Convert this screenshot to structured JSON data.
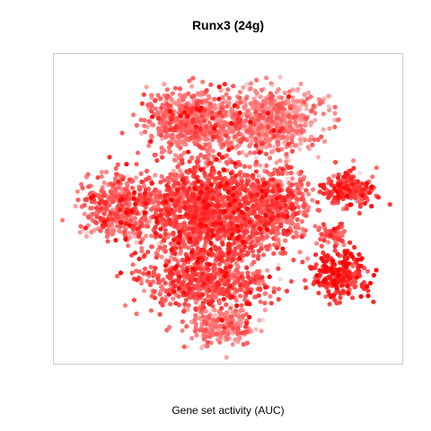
{
  "chart_data": {
    "type": "scatter",
    "title": "Runx3 (24g)",
    "xlabel": "Gene set activity (AUC)",
    "ylabel": "",
    "legend": "none",
    "grid": false,
    "color_scale": {
      "low": "#f4e6e6",
      "mid": "#ff7777",
      "high": "#ff0000"
    },
    "seed": 24,
    "clusters": [
      {
        "name": "upper-left",
        "cx": 0.4,
        "cy": 0.22,
        "rx": 0.13,
        "ry": 0.09,
        "n": 600,
        "level": 0.5
      },
      {
        "name": "upper-right",
        "cx": 0.62,
        "cy": 0.22,
        "rx": 0.14,
        "ry": 0.1,
        "n": 650,
        "level": 0.4
      },
      {
        "name": "left",
        "cx": 0.19,
        "cy": 0.5,
        "rx": 0.1,
        "ry": 0.1,
        "n": 450,
        "level": 0.52
      },
      {
        "name": "center",
        "cx": 0.45,
        "cy": 0.52,
        "rx": 0.18,
        "ry": 0.15,
        "n": 1400,
        "level": 0.66
      },
      {
        "name": "center-right",
        "cx": 0.64,
        "cy": 0.49,
        "rx": 0.09,
        "ry": 0.11,
        "n": 420,
        "level": 0.56
      },
      {
        "name": "lower-center",
        "cx": 0.44,
        "cy": 0.74,
        "rx": 0.17,
        "ry": 0.08,
        "n": 550,
        "level": 0.62
      },
      {
        "name": "bottom-lobe",
        "cx": 0.48,
        "cy": 0.88,
        "rx": 0.09,
        "ry": 0.05,
        "n": 220,
        "level": 0.44
      },
      {
        "name": "right-upper",
        "cx": 0.85,
        "cy": 0.44,
        "rx": 0.07,
        "ry": 0.05,
        "n": 200,
        "level": 0.72
      },
      {
        "name": "right-lower",
        "cx": 0.82,
        "cy": 0.71,
        "rx": 0.07,
        "ry": 0.07,
        "n": 240,
        "level": 0.8
      },
      {
        "name": "right-middle",
        "cx": 0.8,
        "cy": 0.58,
        "rx": 0.04,
        "ry": 0.03,
        "n": 60,
        "level": 0.55
      }
    ]
  }
}
